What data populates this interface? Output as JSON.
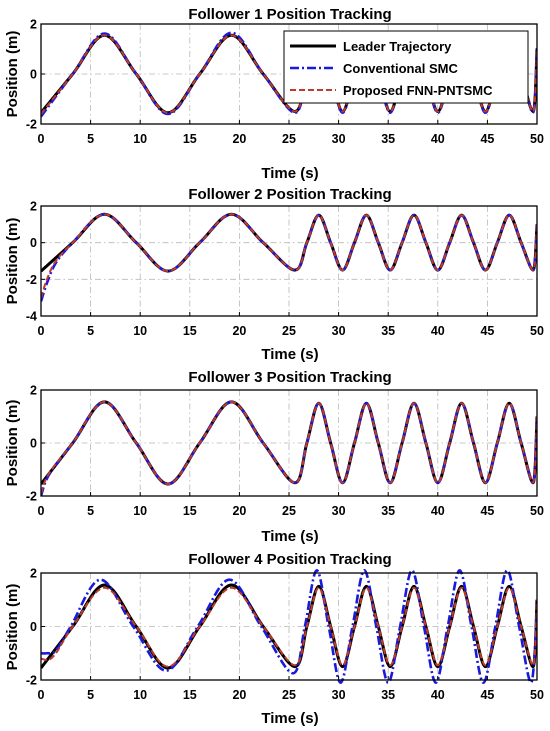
{
  "chart_data": [
    {
      "type": "line",
      "title": "Follower 1 Position Tracking",
      "xlabel": "Time (s)",
      "ylabel": "Position (m)",
      "xlim": [
        0,
        50
      ],
      "ylim": [
        -2,
        2
      ],
      "xticks": [
        0,
        5,
        10,
        15,
        20,
        25,
        30,
        35,
        40,
        45,
        50
      ],
      "yticks": [
        -2,
        0,
        2
      ],
      "grid": true,
      "legend": "top-right",
      "series": [
        {
          "name": "Leader Trajectory",
          "color": "#000000",
          "style": "solid",
          "x": [
            0,
            3.2,
            6.4,
            9.6,
            12.8,
            16,
            19.2,
            22.4,
            25.6,
            26.8,
            28,
            29.2,
            30.4,
            31.6,
            32.8,
            34,
            35.2,
            36.4,
            37.6,
            38.8,
            40,
            41.2,
            42.4,
            43.6,
            44.8,
            46,
            47.2,
            48.4,
            49.6,
            50
          ],
          "y": [
            -1.55,
            0,
            1.55,
            0,
            -1.55,
            0,
            1.55,
            0,
            -1.5,
            0,
            1.5,
            0,
            -1.5,
            0,
            1.5,
            0,
            -1.5,
            0,
            1.5,
            0,
            -1.5,
            0,
            1.5,
            0,
            -1.5,
            0,
            1.5,
            0,
            -1.5,
            1.0
          ]
        },
        {
          "name": "Conventional SMC",
          "color": "#1a1adc",
          "style": "dashdot",
          "x": [
            0,
            3.2,
            6.4,
            9.6,
            12.8,
            16,
            19.2,
            22.4,
            25.6,
            26.8,
            28,
            29.2,
            30.4,
            31.6,
            32.8,
            34,
            35.2,
            36.4,
            37.6,
            38.8,
            40,
            41.2,
            42.4,
            43.6,
            44.8,
            46,
            47.2,
            48.4,
            49.6,
            50
          ],
          "y": [
            -1.7,
            0,
            1.62,
            0,
            -1.6,
            0,
            1.65,
            0,
            -1.55,
            0,
            1.55,
            0,
            -1.55,
            0,
            1.55,
            0,
            -1.55,
            0,
            1.55,
            0,
            -1.55,
            0,
            1.55,
            0,
            -1.55,
            0,
            1.55,
            0,
            -1.55,
            1.05
          ]
        },
        {
          "name": "Proposed FNN-PNTSMC",
          "color": "#c0392b",
          "style": "dashed",
          "x": [
            0,
            3.2,
            6.4,
            9.6,
            12.8,
            16,
            19.2,
            22.4,
            25.6,
            26.8,
            28,
            29.2,
            30.4,
            31.6,
            32.8,
            34,
            35.2,
            36.4,
            37.6,
            38.8,
            40,
            41.2,
            42.4,
            43.6,
            44.8,
            46,
            47.2,
            48.4,
            49.6,
            50
          ],
          "y": [
            -1.6,
            0,
            1.55,
            0,
            -1.55,
            0,
            1.55,
            0,
            -1.5,
            0,
            1.5,
            0,
            -1.5,
            0,
            1.5,
            0,
            -1.5,
            0,
            1.5,
            0,
            -1.5,
            0,
            1.5,
            0,
            -1.5,
            0,
            1.5,
            0,
            -1.5,
            1.0
          ]
        }
      ]
    },
    {
      "type": "line",
      "title": "Follower 2 Position Tracking",
      "xlabel": "Time (s)",
      "ylabel": "Position (m)",
      "xlim": [
        0,
        50
      ],
      "ylim": [
        -4,
        2
      ],
      "xticks": [
        0,
        5,
        10,
        15,
        20,
        25,
        30,
        35,
        40,
        45,
        50
      ],
      "yticks": [
        -4,
        -2,
        0,
        2
      ],
      "grid": true,
      "series": [
        {
          "name": "",
          "color": "#000000",
          "style": "solid",
          "x": [
            0,
            3.2,
            6.4,
            9.6,
            12.8,
            16,
            19.2,
            22.4,
            25.6,
            26.8,
            28,
            29.2,
            30.4,
            31.6,
            32.8,
            34,
            35.2,
            36.4,
            37.6,
            38.8,
            40,
            41.2,
            42.4,
            43.6,
            44.8,
            46,
            47.2,
            48.4,
            49.6,
            50
          ],
          "y": [
            -1.55,
            0,
            1.55,
            0,
            -1.55,
            0,
            1.55,
            0,
            -1.5,
            0,
            1.5,
            0,
            -1.5,
            0,
            1.5,
            0,
            -1.5,
            0,
            1.5,
            0,
            -1.5,
            0,
            1.5,
            0,
            -1.5,
            0,
            1.5,
            0,
            -1.5,
            1.0
          ]
        },
        {
          "name": "",
          "color": "#1a1adc",
          "style": "dashdot",
          "x": [
            0,
            0.6,
            1.5,
            3.2,
            6.4,
            9.6,
            12.8,
            16,
            19.2,
            22.4,
            25.6,
            26.8,
            28,
            29.2,
            30.4,
            31.6,
            32.8,
            34,
            35.2,
            36.4,
            37.6,
            38.8,
            40,
            41.2,
            42.4,
            43.6,
            44.8,
            46,
            47.2,
            48.4,
            49.6,
            50
          ],
          "y": [
            -3.2,
            -2.2,
            -1.1,
            0,
            1.55,
            0,
            -1.55,
            0,
            1.55,
            0,
            -1.5,
            0,
            1.5,
            0,
            -1.5,
            0,
            1.5,
            0,
            -1.5,
            0,
            1.5,
            0,
            -1.5,
            0,
            1.5,
            0,
            -1.5,
            0,
            1.5,
            0,
            -1.5,
            1.0
          ]
        },
        {
          "name": "",
          "color": "#c0392b",
          "style": "dashed",
          "x": [
            0,
            0.6,
            1.5,
            3.2,
            6.4,
            9.6,
            12.8,
            16,
            19.2,
            22.4,
            25.6,
            26.8,
            28,
            29.2,
            30.4,
            31.6,
            32.8,
            34,
            35.2,
            36.4,
            37.6,
            38.8,
            40,
            41.2,
            42.4,
            43.6,
            44.8,
            46,
            47.2,
            48.4,
            49.6,
            50
          ],
          "y": [
            -3.0,
            -2.0,
            -1.0,
            0,
            1.55,
            0,
            -1.55,
            0,
            1.55,
            0,
            -1.5,
            0,
            1.5,
            0,
            -1.5,
            0,
            1.5,
            0,
            -1.5,
            0,
            1.5,
            0,
            -1.5,
            0,
            1.5,
            0,
            -1.5,
            0,
            1.5,
            0,
            -1.5,
            1.0
          ]
        }
      ]
    },
    {
      "type": "line",
      "title": "Follower 3 Position Tracking",
      "xlabel": "Time (s)",
      "ylabel": "Position (m)",
      "xlim": [
        0,
        50
      ],
      "ylim": [
        -2,
        2
      ],
      "xticks": [
        0,
        5,
        10,
        15,
        20,
        25,
        30,
        35,
        40,
        45,
        50
      ],
      "yticks": [
        -2,
        0,
        2
      ],
      "grid": true,
      "series": [
        {
          "name": "",
          "color": "#000000",
          "style": "solid",
          "x": [
            0,
            3.2,
            6.4,
            9.6,
            12.8,
            16,
            19.2,
            22.4,
            25.6,
            26.8,
            28,
            29.2,
            30.4,
            31.6,
            32.8,
            34,
            35.2,
            36.4,
            37.6,
            38.8,
            40,
            41.2,
            42.4,
            43.6,
            44.8,
            46,
            47.2,
            48.4,
            49.6,
            50
          ],
          "y": [
            -1.55,
            0,
            1.55,
            0,
            -1.55,
            0,
            1.55,
            0,
            -1.5,
            0,
            1.5,
            0,
            -1.5,
            0,
            1.5,
            0,
            -1.5,
            0,
            1.5,
            0,
            -1.5,
            0,
            1.5,
            0,
            -1.5,
            0,
            1.5,
            0,
            -1.5,
            1.0
          ]
        },
        {
          "name": "",
          "color": "#1a1adc",
          "style": "dashdot",
          "x": [
            0,
            0.8,
            3.2,
            6.4,
            9.6,
            12.8,
            16,
            19.2,
            22.4,
            25.6,
            26.8,
            28,
            29.2,
            30.4,
            31.6,
            32.8,
            34,
            35.2,
            36.4,
            37.6,
            38.8,
            40,
            41.2,
            42.4,
            43.6,
            44.8,
            46,
            47.2,
            48.4,
            49.6,
            50
          ],
          "y": [
            -2.0,
            -1.2,
            0,
            1.55,
            0,
            -1.55,
            0,
            1.55,
            0,
            -1.5,
            0,
            1.5,
            0,
            -1.5,
            0,
            1.5,
            0,
            -1.5,
            0,
            1.5,
            0,
            -1.5,
            0,
            1.5,
            0,
            -1.5,
            0,
            1.5,
            0,
            -1.5,
            1.0
          ]
        },
        {
          "name": "",
          "color": "#c0392b",
          "style": "dashed",
          "x": [
            0,
            0.8,
            3.2,
            6.4,
            9.6,
            12.8,
            16,
            19.2,
            22.4,
            25.6,
            26.8,
            28,
            29.2,
            30.4,
            31.6,
            32.8,
            34,
            35.2,
            36.4,
            37.6,
            38.8,
            40,
            41.2,
            42.4,
            43.6,
            44.8,
            46,
            47.2,
            48.4,
            49.6,
            50
          ],
          "y": [
            -1.9,
            -1.15,
            0,
            1.55,
            0,
            -1.55,
            0,
            1.55,
            0,
            -1.5,
            0,
            1.5,
            0,
            -1.5,
            0,
            1.5,
            0,
            -1.5,
            0,
            1.5,
            0,
            -1.5,
            0,
            1.5,
            0,
            -1.5,
            0,
            1.5,
            0,
            -1.5,
            1.0
          ]
        }
      ]
    },
    {
      "type": "line",
      "title": "Follower 4 Position Tracking",
      "xlabel": "Time (s)",
      "ylabel": "Position (m)",
      "xlim": [
        0,
        50
      ],
      "ylim": [
        -2,
        2
      ],
      "xticks": [
        0,
        5,
        10,
        15,
        20,
        25,
        30,
        35,
        40,
        45,
        50
      ],
      "yticks": [
        -2,
        0,
        2
      ],
      "grid": true,
      "series": [
        {
          "name": "",
          "color": "#000000",
          "style": "solid",
          "x": [
            0,
            3.2,
            6.4,
            9.6,
            12.8,
            16,
            19.2,
            22.4,
            25.6,
            26.8,
            28,
            29.2,
            30.4,
            31.6,
            32.8,
            34,
            35.2,
            36.4,
            37.6,
            38.8,
            40,
            41.2,
            42.4,
            43.6,
            44.8,
            46,
            47.2,
            48.4,
            49.6,
            50
          ],
          "y": [
            -1.55,
            0,
            1.55,
            0,
            -1.55,
            0,
            1.55,
            0,
            -1.5,
            0,
            1.5,
            0,
            -1.5,
            0,
            1.5,
            0,
            -1.5,
            0,
            1.5,
            0,
            -1.5,
            0,
            1.5,
            0,
            -1.5,
            0,
            1.5,
            0,
            -1.5,
            1.0
          ]
        },
        {
          "name": "",
          "color": "#1a1adc",
          "style": "dashdot",
          "x": [
            0,
            0.6,
            1.5,
            3.0,
            6.0,
            9.3,
            12.6,
            15.8,
            19.0,
            22.2,
            25.4,
            26.6,
            27.8,
            29.0,
            30.2,
            31.4,
            32.6,
            33.8,
            35.0,
            36.2,
            37.4,
            38.6,
            39.8,
            41.0,
            42.2,
            43.4,
            44.6,
            45.8,
            47.0,
            48.2,
            49.4,
            50
          ],
          "y": [
            -1.0,
            -1.0,
            -0.9,
            0,
            1.75,
            0,
            -1.65,
            0,
            1.75,
            0,
            -1.75,
            0,
            2.1,
            0,
            -2.1,
            0,
            2.1,
            0,
            -2.1,
            0,
            2.1,
            0,
            -2.1,
            0,
            2.1,
            0,
            -2.1,
            0,
            2.1,
            0,
            -2.1,
            0.6
          ]
        },
        {
          "name": "",
          "color": "#c0392b",
          "style": "dashed",
          "x": [
            0,
            0.6,
            1.5,
            3.2,
            6.4,
            9.6,
            12.8,
            16,
            19.2,
            22.4,
            25.6,
            26.8,
            28,
            29.2,
            30.4,
            31.6,
            32.8,
            34,
            35.2,
            36.4,
            37.6,
            38.8,
            40,
            41.2,
            42.4,
            43.6,
            44.8,
            46,
            47.2,
            48.4,
            49.6,
            50
          ],
          "y": [
            -1.2,
            -1.25,
            -1.0,
            0,
            1.45,
            0,
            -1.5,
            0,
            1.45,
            0,
            -1.45,
            0,
            1.45,
            0,
            -1.45,
            0,
            1.45,
            0,
            -1.45,
            0,
            1.45,
            0,
            -1.45,
            0,
            1.45,
            0,
            -1.45,
            0,
            1.45,
            0,
            -1.45,
            1.0
          ]
        }
      ]
    }
  ]
}
